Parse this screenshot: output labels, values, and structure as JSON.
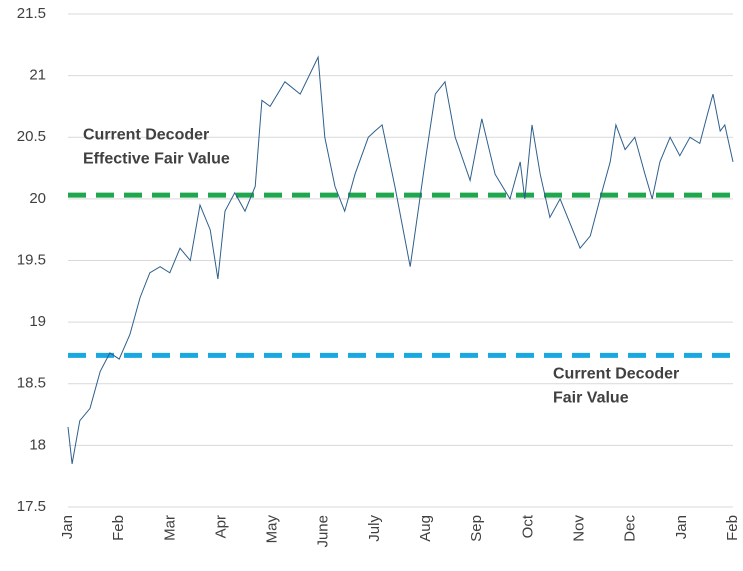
{
  "chart_data": {
    "type": "line",
    "x": [
      0,
      0.08,
      0.23,
      0.43,
      0.63,
      0.82,
      1.0,
      1.21,
      1.41,
      1.6,
      1.8,
      1.99,
      2.19,
      2.39,
      2.58,
      2.78,
      2.93,
      3.07,
      3.26,
      3.46,
      3.66,
      3.79,
      3.95,
      4.24,
      4.54,
      4.89,
      5.02,
      5.22,
      5.41,
      5.61,
      5.87,
      6.0,
      6.14,
      6.39,
      6.69,
      6.98,
      7.18,
      7.37,
      7.57,
      7.86,
      8.09,
      8.35,
      8.64,
      8.84,
      8.93,
      9.07,
      9.23,
      9.42,
      9.62,
      10.01,
      10.21,
      10.4,
      10.6,
      10.71,
      10.89,
      11.08,
      11.28,
      11.42,
      11.57,
      11.77,
      11.96,
      12.16,
      12.35,
      12.51,
      12.61,
      12.75,
      12.84,
      13.0
    ],
    "series": [
      {
        "color": "#2e5f8c",
        "values": [
          18.15,
          17.85,
          18.2,
          18.3,
          18.6,
          18.75,
          18.7,
          18.9,
          19.2,
          19.4,
          19.45,
          19.4,
          19.6,
          19.5,
          19.95,
          19.75,
          19.35,
          19.9,
          20.05,
          19.9,
          20.1,
          20.8,
          20.75,
          20.95,
          20.85,
          21.15,
          20.5,
          20.1,
          19.9,
          20.2,
          20.5,
          20.55,
          20.6,
          20.1,
          19.45,
          20.3,
          20.85,
          20.95,
          20.5,
          20.15,
          20.65,
          20.2,
          20.0,
          20.3,
          20.0,
          20.6,
          20.2,
          19.85,
          20.0,
          19.6,
          19.7,
          20.0,
          20.3,
          20.6,
          20.4,
          20.5,
          20.2,
          20.0,
          20.3,
          20.5,
          20.35,
          20.5,
          20.45,
          20.7,
          20.85,
          20.55,
          20.6,
          20.3
        ]
      }
    ],
    "reference_lines": [
      {
        "label_lines": [
          "Current Decoder",
          "Effective Fair Value"
        ],
        "value": 20.03,
        "color": "#1fa64e",
        "label_color": "#4c9a63"
      },
      {
        "label_lines": [
          "Current Decoder",
          "Fair Value"
        ],
        "value": 18.73,
        "color": "#1ba8e0",
        "label_color": "#2aa3dc"
      }
    ],
    "xlim": [
      0,
      13
    ],
    "xticks": [
      {
        "value": 0,
        "label": "Jan"
      },
      {
        "value": 1,
        "label": "Feb"
      },
      {
        "value": 2,
        "label": "Mar"
      },
      {
        "value": 3,
        "label": "Apr"
      },
      {
        "value": 4,
        "label": "May"
      },
      {
        "value": 5,
        "label": "June"
      },
      {
        "value": 6,
        "label": "July"
      },
      {
        "value": 7,
        "label": "Aug"
      },
      {
        "value": 8,
        "label": "Sep"
      },
      {
        "value": 9,
        "label": "Oct"
      },
      {
        "value": 10,
        "label": "Nov"
      },
      {
        "value": 11,
        "label": "Dec"
      },
      {
        "value": 12,
        "label": "Jan"
      },
      {
        "value": 13,
        "label": "Feb"
      }
    ],
    "ylim": [
      17.5,
      21.5
    ],
    "yticks": [
      17.5,
      18,
      18.5,
      19,
      19.5,
      20,
      20.5,
      21,
      21.5
    ],
    "grid": true
  }
}
